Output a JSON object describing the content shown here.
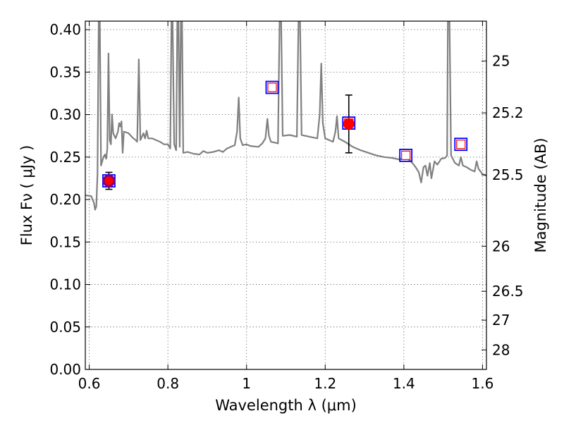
{
  "chart_data": {
    "type": "line",
    "title": "",
    "xlabel": "Wavelength  λ (μm)",
    "ylabel": "Flux  Fν  ( μJy )",
    "y2label": "Magnitude (AB)",
    "xlim": [
      0.59,
      1.61
    ],
    "ylim": [
      0.0,
      0.41
    ],
    "grid": true,
    "legend": "none",
    "colors": {
      "model": "#808080",
      "observed": "#ff0000",
      "synthetic_box": "#0000ff",
      "synthetic_inner": "#ff0000",
      "observed_ring": "#800080",
      "errorbar": "#000000"
    },
    "x_ticks": [
      {
        "value": 0.6,
        "label": "0.6"
      },
      {
        "value": 0.8,
        "label": "0.8"
      },
      {
        "value": 1.0,
        "label": "1"
      },
      {
        "value": 1.2,
        "label": "1.2"
      },
      {
        "value": 1.4,
        "label": "1.4"
      },
      {
        "value": 1.6,
        "label": "1.6"
      }
    ],
    "y_ticks": [
      {
        "value": 0.0,
        "label": "0.00"
      },
      {
        "value": 0.05,
        "label": "0.05"
      },
      {
        "value": 0.1,
        "label": "0.10"
      },
      {
        "value": 0.15,
        "label": "0.15"
      },
      {
        "value": 0.2,
        "label": "0.20"
      },
      {
        "value": 0.25,
        "label": "0.25"
      },
      {
        "value": 0.3,
        "label": "0.30"
      },
      {
        "value": 0.35,
        "label": "0.35"
      },
      {
        "value": 0.4,
        "label": "0.40"
      }
    ],
    "y2_ticks": [
      {
        "flux": 0.363,
        "label": "25"
      },
      {
        "flux": 0.302,
        "label": "25.2"
      },
      {
        "flux": 0.229,
        "label": "25.5"
      },
      {
        "flux": 0.145,
        "label": "26"
      },
      {
        "flux": 0.092,
        "label": "26.5"
      },
      {
        "flux": 0.058,
        "label": "27"
      },
      {
        "flux": 0.023,
        "label": "28"
      }
    ],
    "model_spectrum": [
      [
        0.59,
        0.205
      ],
      [
        0.605,
        0.204
      ],
      [
        0.612,
        0.196
      ],
      [
        0.615,
        0.188
      ],
      [
        0.618,
        0.192
      ],
      [
        0.621,
        0.23
      ],
      [
        0.624,
        0.41
      ],
      [
        0.627,
        0.41
      ],
      [
        0.63,
        0.24
      ],
      [
        0.636,
        0.25
      ],
      [
        0.64,
        0.253
      ],
      [
        0.643,
        0.248
      ],
      [
        0.646,
        0.26
      ],
      [
        0.649,
        0.372
      ],
      [
        0.652,
        0.27
      ],
      [
        0.655,
        0.265
      ],
      [
        0.658,
        0.3
      ],
      [
        0.661,
        0.278
      ],
      [
        0.667,
        0.272
      ],
      [
        0.673,
        0.28
      ],
      [
        0.676,
        0.29
      ],
      [
        0.679,
        0.286
      ],
      [
        0.682,
        0.292
      ],
      [
        0.685,
        0.255
      ],
      [
        0.688,
        0.28
      ],
      [
        0.7,
        0.278
      ],
      [
        0.71,
        0.273
      ],
      [
        0.718,
        0.27
      ],
      [
        0.722,
        0.268
      ],
      [
        0.726,
        0.365
      ],
      [
        0.73,
        0.27
      ],
      [
        0.738,
        0.278
      ],
      [
        0.742,
        0.272
      ],
      [
        0.746,
        0.281
      ],
      [
        0.75,
        0.272
      ],
      [
        0.76,
        0.272
      ],
      [
        0.77,
        0.27
      ],
      [
        0.78,
        0.268
      ],
      [
        0.79,
        0.265
      ],
      [
        0.8,
        0.265
      ],
      [
        0.806,
        0.26
      ],
      [
        0.809,
        0.41
      ],
      [
        0.812,
        0.41
      ],
      [
        0.816,
        0.265
      ],
      [
        0.821,
        0.258
      ],
      [
        0.824,
        0.41
      ],
      [
        0.827,
        0.41
      ],
      [
        0.83,
        0.262
      ],
      [
        0.833,
        0.41
      ],
      [
        0.836,
        0.41
      ],
      [
        0.839,
        0.255
      ],
      [
        0.85,
        0.256
      ],
      [
        0.865,
        0.254
      ],
      [
        0.88,
        0.253
      ],
      [
        0.89,
        0.257
      ],
      [
        0.9,
        0.255
      ],
      [
        0.915,
        0.256
      ],
      [
        0.93,
        0.258
      ],
      [
        0.94,
        0.256
      ],
      [
        0.95,
        0.26
      ],
      [
        0.96,
        0.262
      ],
      [
        0.97,
        0.264
      ],
      [
        0.976,
        0.28
      ],
      [
        0.98,
        0.32
      ],
      [
        0.984,
        0.272
      ],
      [
        0.99,
        0.264
      ],
      [
        1.0,
        0.265
      ],
      [
        1.01,
        0.263
      ],
      [
        1.03,
        0.262
      ],
      [
        1.04,
        0.266
      ],
      [
        1.048,
        0.272
      ],
      [
        1.053,
        0.295
      ],
      [
        1.057,
        0.275
      ],
      [
        1.062,
        0.268
      ],
      [
        1.072,
        0.267
      ],
      [
        1.08,
        0.266
      ],
      [
        1.084,
        0.41
      ],
      [
        1.088,
        0.41
      ],
      [
        1.092,
        0.275
      ],
      [
        1.11,
        0.276
      ],
      [
        1.128,
        0.274
      ],
      [
        1.132,
        0.41
      ],
      [
        1.136,
        0.41
      ],
      [
        1.14,
        0.276
      ],
      [
        1.16,
        0.274
      ],
      [
        1.18,
        0.272
      ],
      [
        1.186,
        0.3
      ],
      [
        1.19,
        0.36
      ],
      [
        1.194,
        0.29
      ],
      [
        1.2,
        0.272
      ],
      [
        1.21,
        0.27
      ],
      [
        1.22,
        0.268
      ],
      [
        1.226,
        0.28
      ],
      [
        1.23,
        0.298
      ],
      [
        1.234,
        0.272
      ],
      [
        1.25,
        0.268
      ],
      [
        1.27,
        0.262
      ],
      [
        1.29,
        0.258
      ],
      [
        1.31,
        0.255
      ],
      [
        1.33,
        0.252
      ],
      [
        1.35,
        0.25
      ],
      [
        1.37,
        0.249
      ],
      [
        1.39,
        0.247
      ],
      [
        1.4,
        0.25
      ],
      [
        1.41,
        0.248
      ],
      [
        1.42,
        0.244
      ],
      [
        1.43,
        0.238
      ],
      [
        1.438,
        0.232
      ],
      [
        1.444,
        0.22
      ],
      [
        1.45,
        0.238
      ],
      [
        1.455,
        0.24
      ],
      [
        1.46,
        0.228
      ],
      [
        1.466,
        0.243
      ],
      [
        1.47,
        0.225
      ],
      [
        1.478,
        0.245
      ],
      [
        1.485,
        0.241
      ],
      [
        1.495,
        0.248
      ],
      [
        1.505,
        0.249
      ],
      [
        1.51,
        0.252
      ],
      [
        1.512,
        0.41
      ],
      [
        1.516,
        0.41
      ],
      [
        1.52,
        0.252
      ],
      [
        1.53,
        0.243
      ],
      [
        1.54,
        0.24
      ],
      [
        1.545,
        0.25
      ],
      [
        1.55,
        0.24
      ],
      [
        1.56,
        0.238
      ],
      [
        1.57,
        0.235
      ],
      [
        1.58,
        0.233
      ],
      [
        1.585,
        0.245
      ],
      [
        1.59,
        0.236
      ],
      [
        1.6,
        0.23
      ],
      [
        1.61,
        0.228
      ]
    ],
    "observed_points": [
      {
        "x": 0.65,
        "y": 0.222,
        "yerr": 0.01
      },
      {
        "x": 1.26,
        "y": 0.289,
        "yerr": 0.034
      }
    ],
    "synthetic_points": [
      {
        "x": 0.65,
        "y": 0.222
      },
      {
        "x": 1.065,
        "y": 0.332
      },
      {
        "x": 1.26,
        "y": 0.29
      },
      {
        "x": 1.405,
        "y": 0.252
      },
      {
        "x": 1.545,
        "y": 0.265
      }
    ]
  }
}
